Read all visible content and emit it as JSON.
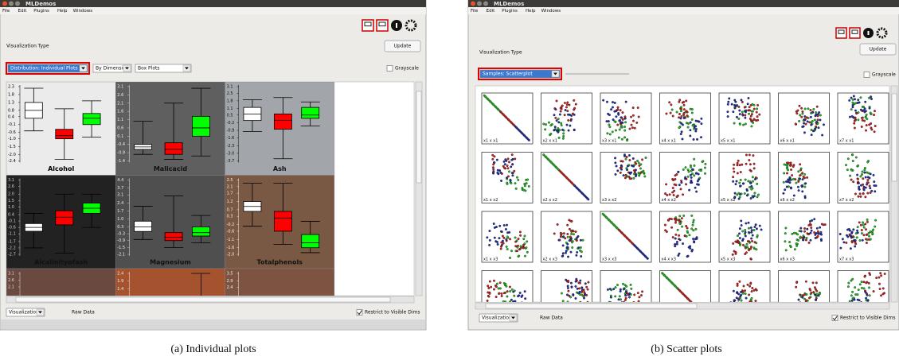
{
  "left": {
    "title": "MLDemos",
    "menu": [
      "File",
      "Edit",
      "Plugins",
      "Help",
      "Windows"
    ],
    "viz_label": "Visualization Type",
    "update": "Update",
    "selector": "Distribution: Individual Plots",
    "dim_selector": "By Dimension",
    "plot_selector": "Box Plots",
    "grayscale": "Grayscale",
    "bottom_selector": "Visualizations",
    "raw_data": "Raw Data",
    "restrict": "Restrict to Visible Dims",
    "caption": "(a) Individual plots",
    "box_colors": [
      "#ffffff",
      "#ff0000",
      "#00ff00"
    ],
    "panels": [
      {
        "name": "Alcohol",
        "bg": "#ebebeb",
        "fg": "#000000",
        "ylim": [
          -2.4,
          2.3
        ],
        "ticks": [
          2.3,
          1.8,
          1.3,
          0.8,
          0.4,
          -0.1,
          -0.6,
          {
            "value": -1,
            "label": "-1.0"
          },
          -1.5,
          {
            "value": -2,
            "label": "-2.0"
          },
          -2.4
        ],
        "boxes": [
          [
            -0.5,
            0.3,
            0.8,
            1.3,
            2.2
          ],
          [
            -2.3,
            -1.0,
            -0.8,
            -0.4,
            0.9
          ],
          [
            -0.9,
            -0.1,
            0.3,
            0.6,
            1.4
          ]
        ]
      },
      {
        "name": "Malicacid",
        "bg": "#5f5f5f",
        "fg": "#eeeeee",
        "ylim": [
          -1.4,
          3.1
        ],
        "ticks": [
          3.1,
          2.6,
          2.1,
          1.6,
          1.1,
          0.6,
          0.1,
          -0.4,
          -0.9,
          -1.4
        ],
        "boxes": [
          [
            -1.0,
            -0.7,
            -0.55,
            -0.4,
            1.0
          ],
          [
            -1.3,
            -1.0,
            -0.7,
            -0.3,
            2.1
          ],
          [
            -1.1,
            0.1,
            0.6,
            1.3,
            3.0
          ]
        ]
      },
      {
        "name": "Ash",
        "bg": "#a2a5a9",
        "fg": "#111111",
        "ylim": [
          -3.7,
          3.1
        ],
        "ticks": [
          3.1,
          2.5,
          1.8,
          1.1,
          0.5,
          -0.2,
          -0.9,
          -1.6,
          -2.3,
          {
            "value": -3,
            "label": "-3.0"
          },
          -3.7
        ],
        "boxes": [
          [
            -1.0,
            0.0,
            0.6,
            1.2,
            1.9
          ],
          [
            -3.5,
            -0.8,
            0.0,
            0.6,
            2.1
          ],
          [
            -0.5,
            0.2,
            0.5,
            1.2,
            1.7
          ]
        ]
      },
      {
        "name": "Alcalinityofash",
        "bg": "#222222",
        "fg": "#cccccc",
        "ylim": [
          -2.7,
          3.1
        ],
        "ticks": [
          3.1,
          2.6,
          {
            "value": 2,
            "label": "2.0"
          },
          1.5,
          {
            "value": 1,
            "label": "1.0"
          },
          0.4,
          -0.1,
          -0.6,
          -1.1,
          -1.7,
          -2.2,
          -2.7
        ],
        "boxes": [
          [
            -2.2,
            -0.9,
            -0.6,
            -0.3,
            0.5
          ],
          [
            -2.6,
            -0.4,
            0.2,
            0.7,
            2.0
          ],
          [
            -0.6,
            0.5,
            0.9,
            1.3,
            2.0
          ]
        ]
      },
      {
        "name": "Magnesium",
        "bg": "#4f4f4f",
        "fg": "#eeeeee",
        "ylim": [
          -2.1,
          4.4
        ],
        "ticks": [
          4.4,
          3.7,
          3.1,
          2.4,
          1.7,
          {
            "value": 1,
            "label": "1.0"
          },
          0.3,
          -0.3,
          -0.9,
          -1.5,
          -2.1
        ],
        "boxes": [
          [
            -0.8,
            -0.1,
            0.3,
            0.8,
            2.1
          ],
          [
            -1.5,
            -0.9,
            -0.6,
            -0.2,
            3.0
          ],
          [
            -1.1,
            -0.5,
            -0.2,
            0.3,
            1.3
          ]
        ]
      },
      {
        "name": "Totalphenols",
        "bg": "#7a5944",
        "fg": "#f0f0f0",
        "ylim": [
          -2.0,
          2.5
        ],
        "ticks": [
          2.5,
          2.1,
          1.7,
          1.2,
          0.7,
          0.3,
          -0.2,
          -0.6,
          -1.1,
          -1.6,
          {
            "value": -2,
            "label": "-2.0"
          }
        ],
        "boxes": [
          [
            -0.3,
            0.6,
            0.9,
            1.2,
            2.3
          ],
          [
            -1.4,
            -0.6,
            0.2,
            0.6,
            2.3
          ],
          [
            -1.9,
            -1.6,
            -1.3,
            -0.8,
            0.0
          ]
        ]
      },
      {
        "bg": "#6a4a40",
        "fg": "#dddddd",
        "ylim": [
          -2.4,
          3.1
        ],
        "ticks": [
          3.1,
          2.6,
          2.1
        ],
        "boxes": []
      },
      {
        "bg": "#a5532f",
        "fg": "#f0f0f0",
        "ylim": [
          -2.4,
          2.4
        ],
        "ticks": [
          2.4,
          1.9,
          1.4
        ],
        "boxes": [
          null,
          null,
          [
            -1.0,
            -0.2,
            0.3,
            0.8,
            2.4
          ]
        ]
      },
      {
        "bg": "#7d5442",
        "fg": "#f0f0f0",
        "ylim": [
          -2.4,
          3.5
        ],
        "ticks": [
          3.5,
          2.9,
          2.4
        ],
        "boxes": []
      }
    ]
  },
  "right": {
    "title": "MLDemos",
    "menu": [
      "File",
      "Edit",
      "Plugins",
      "Help",
      "Windows"
    ],
    "viz_label": "Visualization Type",
    "update": "Update",
    "selector": "Samples: Scatterplot",
    "grayscale": "Grayscale",
    "bottom_selector": "Visualizations",
    "raw_data": "Raw Data",
    "restrict": "Restrict to Visible Dims",
    "caption": "(b) Scatter plots",
    "point_colors": [
      "#22bb22",
      "#cc2222",
      "#2233aa"
    ],
    "labels": [
      [
        "x1 x x1",
        "x2 x x1",
        "x3 x x1",
        "x4 x x1",
        "x5 x x1",
        "x6 x x1",
        "x7 x x1"
      ],
      [
        "x1 x x2",
        "x2 x x2",
        "x3 x x2",
        "x4 x x2",
        "x5 x x2",
        "x6 x x2",
        "x7 x x2"
      ],
      [
        "x1 x x3",
        "x2 x x3",
        "x3 x x3",
        "x4 x x3",
        "x5 x x3",
        "x6 x x3",
        "x7 x x3"
      ],
      [
        null,
        null,
        null,
        null,
        null,
        null,
        null
      ]
    ]
  }
}
